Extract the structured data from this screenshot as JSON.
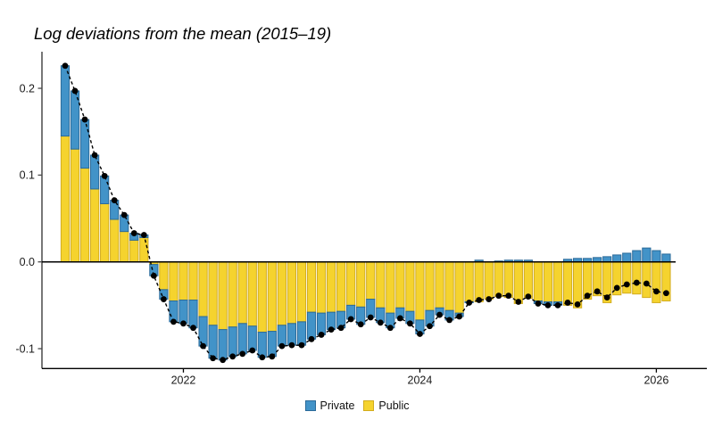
{
  "title": "Log deviations from the mean (2015–19)",
  "legend": {
    "private_label": "Private",
    "public_label": "Public"
  },
  "colors": {
    "background": "#FFFFFF",
    "private": "#4293C8",
    "private_border": "#2B6A99",
    "public": "#F5D32E",
    "public_border": "#D2AC1E",
    "total_line": "#000000",
    "dot": "#000000",
    "y_axis": "#4A4A4A",
    "x_axis": "#000000",
    "baseline": "#000000",
    "tick_text": "#1A1A1A"
  },
  "chart_data": {
    "type": "bar",
    "variant": "stacked-bars-with-dashed-total-line",
    "title": "Log deviations from the mean (2015–19)",
    "xlabel": "",
    "ylabel": "",
    "x": {
      "start": "2021-01",
      "end": "2026-02",
      "frequency": "monthly",
      "n": 62
    },
    "series": [
      {
        "name": "Private",
        "color": "#4293C8",
        "values": [
          0.081,
          0.067,
          0.056,
          0.039,
          0.032,
          0.022,
          0.019,
          0.008,
          0.003,
          -0.013,
          -0.011,
          -0.024,
          -0.027,
          -0.032,
          -0.034,
          -0.038,
          -0.035,
          -0.034,
          -0.035,
          -0.028,
          -0.029,
          -0.029,
          -0.024,
          -0.025,
          -0.027,
          -0.031,
          -0.025,
          -0.02,
          -0.019,
          -0.016,
          -0.02,
          -0.021,
          -0.017,
          -0.017,
          -0.012,
          -0.014,
          -0.016,
          -0.018,
          -0.008,
          -0.011,
          -0.004,
          -0.001,
          0.002,
          0.0,
          0.001,
          0.002,
          0.002,
          0.002,
          -0.003,
          -0.004,
          -0.004,
          0.003,
          0.004,
          0.004,
          0.005,
          0.006,
          0.008,
          0.01,
          0.013,
          0.016,
          0.013,
          0.009
        ]
      },
      {
        "name": "Public",
        "color": "#F5D32E",
        "values": [
          0.145,
          0.13,
          0.108,
          0.084,
          0.067,
          0.049,
          0.035,
          0.025,
          0.028,
          -0.003,
          -0.032,
          -0.045,
          -0.044,
          -0.044,
          -0.063,
          -0.073,
          -0.078,
          -0.075,
          -0.071,
          -0.074,
          -0.081,
          -0.08,
          -0.073,
          -0.071,
          -0.069,
          -0.058,
          -0.059,
          -0.058,
          -0.057,
          -0.05,
          -0.052,
          -0.043,
          -0.053,
          -0.059,
          -0.053,
          -0.057,
          -0.067,
          -0.056,
          -0.053,
          -0.056,
          -0.059,
          -0.046,
          -0.046,
          -0.043,
          -0.04,
          -0.041,
          -0.048,
          -0.042,
          -0.045,
          -0.046,
          -0.046,
          -0.05,
          -0.053,
          -0.043,
          -0.039,
          -0.047,
          -0.038,
          -0.036,
          -0.037,
          -0.041,
          -0.047,
          -0.045
        ]
      }
    ],
    "stack_order_from_axis": [
      "Public",
      "Private"
    ],
    "total_overlay": {
      "style": "dashed black line with black dots",
      "equals": "Public + Private"
    },
    "x_ticks": [
      {
        "label": "2022",
        "month_index": 12
      },
      {
        "label": "2024",
        "month_index": 36
      },
      {
        "label": "2026",
        "month_index": 60
      }
    ],
    "y_ticks": [
      0.2,
      0.1,
      0.0,
      -0.1
    ],
    "y_tick_labels": [
      "0.2",
      "0.1",
      "0.0",
      "-0.1"
    ],
    "ylim": [
      -0.125,
      0.235
    ],
    "grid": false,
    "legend_position": "bottom-center"
  }
}
